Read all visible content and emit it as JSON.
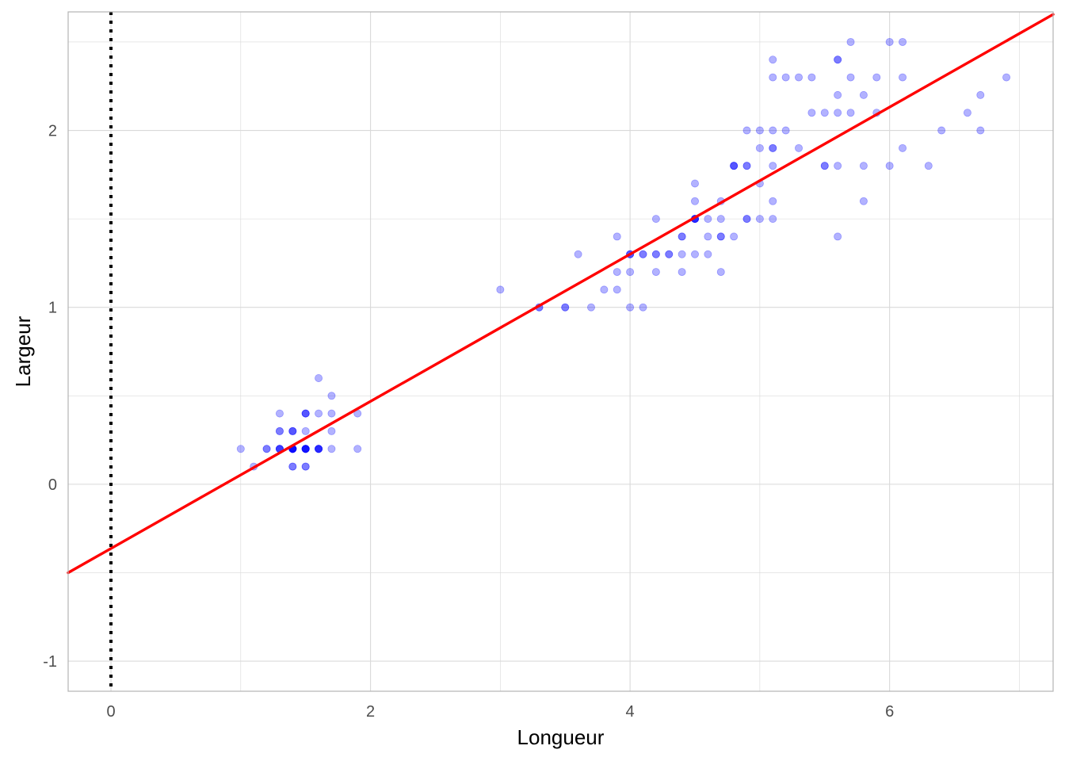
{
  "chart_data": {
    "type": "scatter",
    "title": "",
    "xlabel": "Longueur",
    "ylabel": "Largeur",
    "xlim": [
      -0.33,
      7.26
    ],
    "ylim": [
      -1.17,
      2.67
    ],
    "x_ticks": [
      0,
      2,
      4,
      6
    ],
    "y_ticks": [
      -1,
      0,
      1,
      2
    ],
    "grid": true,
    "legend": "none",
    "colors": {
      "points": "#0000ff",
      "regression_line": "#ff0000",
      "reference_line": "#000000",
      "grid": "#d9d9d9",
      "panel_border": "#b3b3b3"
    },
    "point_opacity": 0.3,
    "regression_line": {
      "intercept": -0.363,
      "slope": 0.4158
    },
    "reference_line": {
      "orientation": "vertical",
      "x": 0,
      "style": "dotted"
    },
    "points": [
      [
        1.4,
        0.2
      ],
      [
        1.4,
        0.2
      ],
      [
        1.3,
        0.2
      ],
      [
        1.5,
        0.2
      ],
      [
        1.4,
        0.2
      ],
      [
        1.7,
        0.4
      ],
      [
        1.4,
        0.3
      ],
      [
        1.5,
        0.2
      ],
      [
        1.4,
        0.2
      ],
      [
        1.5,
        0.1
      ],
      [
        1.5,
        0.2
      ],
      [
        1.6,
        0.2
      ],
      [
        1.4,
        0.1
      ],
      [
        1.1,
        0.1
      ],
      [
        1.2,
        0.2
      ],
      [
        1.5,
        0.4
      ],
      [
        1.3,
        0.4
      ],
      [
        1.4,
        0.3
      ],
      [
        1.7,
        0.3
      ],
      [
        1.5,
        0.3
      ],
      [
        1.7,
        0.2
      ],
      [
        1.5,
        0.4
      ],
      [
        1.0,
        0.2
      ],
      [
        1.7,
        0.5
      ],
      [
        1.9,
        0.2
      ],
      [
        1.6,
        0.2
      ],
      [
        1.6,
        0.4
      ],
      [
        1.5,
        0.2
      ],
      [
        1.4,
        0.2
      ],
      [
        1.6,
        0.2
      ],
      [
        1.6,
        0.2
      ],
      [
        1.5,
        0.4
      ],
      [
        1.5,
        0.1
      ],
      [
        1.4,
        0.2
      ],
      [
        1.5,
        0.2
      ],
      [
        1.2,
        0.2
      ],
      [
        1.3,
        0.2
      ],
      [
        1.4,
        0.1
      ],
      [
        1.3,
        0.2
      ],
      [
        1.5,
        0.2
      ],
      [
        1.3,
        0.3
      ],
      [
        1.3,
        0.3
      ],
      [
        1.3,
        0.2
      ],
      [
        1.6,
        0.6
      ],
      [
        1.9,
        0.4
      ],
      [
        1.4,
        0.3
      ],
      [
        1.6,
        0.2
      ],
      [
        1.4,
        0.2
      ],
      [
        1.5,
        0.2
      ],
      [
        1.4,
        0.2
      ],
      [
        4.7,
        1.4
      ],
      [
        4.5,
        1.5
      ],
      [
        4.9,
        1.5
      ],
      [
        4.0,
        1.3
      ],
      [
        4.6,
        1.5
      ],
      [
        4.5,
        1.3
      ],
      [
        4.7,
        1.6
      ],
      [
        3.3,
        1.0
      ],
      [
        4.6,
        1.3
      ],
      [
        3.9,
        1.4
      ],
      [
        3.5,
        1.0
      ],
      [
        4.2,
        1.5
      ],
      [
        4.0,
        1.0
      ],
      [
        4.7,
        1.4
      ],
      [
        3.6,
        1.3
      ],
      [
        4.4,
        1.4
      ],
      [
        4.5,
        1.5
      ],
      [
        4.1,
        1.0
      ],
      [
        4.5,
        1.5
      ],
      [
        3.9,
        1.1
      ],
      [
        4.8,
        1.8
      ],
      [
        4.0,
        1.3
      ],
      [
        4.9,
        1.5
      ],
      [
        4.7,
        1.2
      ],
      [
        4.3,
        1.3
      ],
      [
        4.4,
        1.4
      ],
      [
        4.8,
        1.4
      ],
      [
        5.0,
        1.7
      ],
      [
        4.5,
        1.5
      ],
      [
        3.5,
        1.0
      ],
      [
        3.8,
        1.1
      ],
      [
        3.7,
        1.0
      ],
      [
        3.9,
        1.2
      ],
      [
        5.1,
        1.6
      ],
      [
        4.5,
        1.5
      ],
      [
        4.5,
        1.6
      ],
      [
        4.7,
        1.5
      ],
      [
        4.4,
        1.3
      ],
      [
        4.1,
        1.3
      ],
      [
        4.0,
        1.3
      ],
      [
        4.4,
        1.2
      ],
      [
        4.6,
        1.4
      ],
      [
        4.0,
        1.2
      ],
      [
        3.3,
        1.0
      ],
      [
        4.2,
        1.3
      ],
      [
        4.2,
        1.2
      ],
      [
        4.2,
        1.3
      ],
      [
        4.3,
        1.3
      ],
      [
        3.0,
        1.1
      ],
      [
        4.1,
        1.3
      ],
      [
        6.0,
        2.5
      ],
      [
        5.1,
        1.9
      ],
      [
        5.9,
        2.1
      ],
      [
        5.6,
        1.8
      ],
      [
        5.8,
        2.2
      ],
      [
        6.6,
        2.1
      ],
      [
        4.5,
        1.7
      ],
      [
        6.3,
        1.8
      ],
      [
        5.8,
        1.8
      ],
      [
        6.1,
        2.5
      ],
      [
        5.1,
        2.0
      ],
      [
        5.3,
        1.9
      ],
      [
        5.5,
        2.1
      ],
      [
        5.0,
        2.0
      ],
      [
        5.1,
        2.4
      ],
      [
        5.3,
        2.3
      ],
      [
        5.5,
        1.8
      ],
      [
        6.7,
        2.2
      ],
      [
        6.9,
        2.3
      ],
      [
        5.0,
        1.5
      ],
      [
        5.7,
        2.3
      ],
      [
        4.9,
        2.0
      ],
      [
        6.7,
        2.0
      ],
      [
        4.9,
        1.8
      ],
      [
        5.7,
        2.1
      ],
      [
        6.0,
        1.8
      ],
      [
        4.8,
        1.8
      ],
      [
        4.9,
        1.8
      ],
      [
        5.6,
        2.1
      ],
      [
        5.8,
        1.6
      ],
      [
        6.1,
        1.9
      ],
      [
        6.4,
        2.0
      ],
      [
        5.6,
        2.2
      ],
      [
        5.1,
        1.5
      ],
      [
        5.6,
        1.4
      ],
      [
        6.1,
        2.3
      ],
      [
        5.6,
        2.4
      ],
      [
        5.5,
        1.8
      ],
      [
        4.8,
        1.8
      ],
      [
        5.4,
        2.1
      ],
      [
        5.6,
        2.4
      ],
      [
        5.1,
        2.3
      ],
      [
        5.1,
        1.9
      ],
      [
        5.9,
        2.3
      ],
      [
        5.7,
        2.5
      ],
      [
        5.2,
        2.3
      ],
      [
        5.0,
        1.9
      ],
      [
        5.2,
        2.0
      ],
      [
        5.4,
        2.3
      ],
      [
        5.1,
        1.8
      ]
    ]
  }
}
